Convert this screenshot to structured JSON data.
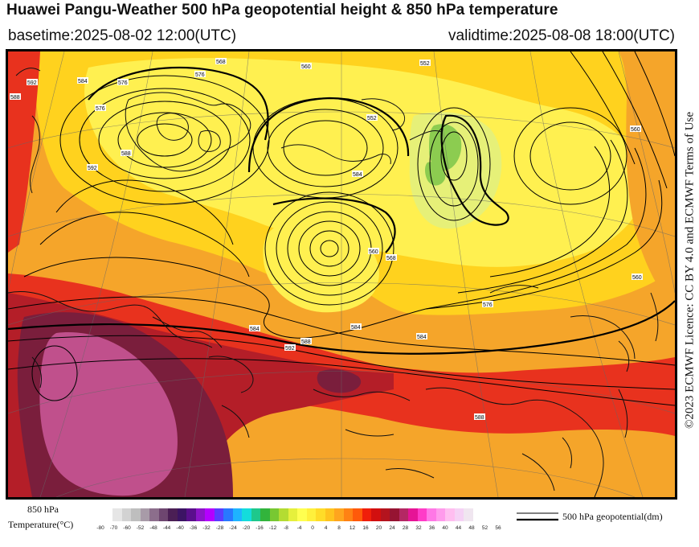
{
  "header": {
    "title": "Huawei Pangu-Weather 500 hPa geopotential height & 850 hPa temperature",
    "basetime": "basetime:2025-08-02 12:00(UTC)",
    "validtime": "validtime:2025-08-08 18:00(UTC)"
  },
  "licence": "©2023 ECMWF Licence: CC BY 4.0 and ECMWF Terms of Use",
  "colorbar": {
    "title_line1": "850 hPa",
    "title_line2": "Temperature(°C)",
    "colors": [
      "#e6e6e6",
      "#d2d2d2",
      "#bebebe",
      "#a89ba8",
      "#8c6e8c",
      "#6e4670",
      "#4b1f55",
      "#3c1464",
      "#5a0f8c",
      "#8c14c8",
      "#b400ff",
      "#5a3cff",
      "#2878ff",
      "#1eb4ff",
      "#14dcdc",
      "#1ec88c",
      "#32b43c",
      "#78c832",
      "#b4dc32",
      "#e6f03c",
      "#ffff50",
      "#fff03c",
      "#ffdc28",
      "#ffc31e",
      "#ffa51e",
      "#ff8214",
      "#ff5a0a",
      "#f01e0a",
      "#d20f0f",
      "#b4141e",
      "#961432",
      "#b42864",
      "#e61496",
      "#ff3cc8",
      "#ff78e6",
      "#ff9bec",
      "#ffbef0",
      "#f5d2f5",
      "#f0e6f0"
    ],
    "ticks": [
      "-80",
      "-70",
      "-60",
      "-52",
      "-48",
      "-44",
      "-40",
      "-36",
      "-32",
      "-28",
      "-24",
      "-20",
      "-16",
      "-12",
      "-8",
      "-4",
      "0",
      "4",
      "8",
      "12",
      "16",
      "20",
      "24",
      "28",
      "32",
      "36",
      "40",
      "44",
      "48",
      "52",
      "56"
    ]
  },
  "legend": {
    "label": "500 hPa geopotential(dm)"
  },
  "map": {
    "fill_colors": {
      "hot": "#e8321e",
      "very_hot": "#b41e28",
      "extreme": "#7a1e3c",
      "extreme_core": "#c0508c",
      "warm": "#f5a52a",
      "mild": "#ffd21e",
      "cool": "#fff050",
      "cold": "#e6f078",
      "coldest": "#8ccc50",
      "contour": "#000000",
      "coast": "#000000"
    },
    "contour_labels": [
      "592",
      "588",
      "584",
      "576",
      "576",
      "576",
      "568",
      "560",
      "552",
      "552",
      "560",
      "568",
      "584",
      "592",
      "588",
      "584",
      "560",
      "560",
      "584",
      "588",
      "592",
      "588",
      "584",
      "576"
    ]
  }
}
